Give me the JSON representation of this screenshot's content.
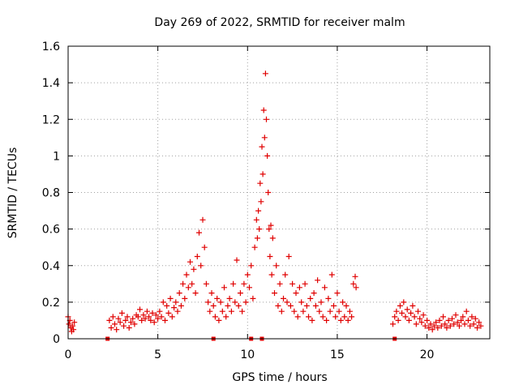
{
  "chart_data": {
    "type": "scatter",
    "title": "Day 269 of 2022, SRMTID for receiver malm",
    "xlabel": "GPS time / hours",
    "ylabel": "SRMTID / TECUs",
    "xlim": [
      0,
      23.5
    ],
    "ylim": [
      0,
      1.6
    ],
    "xticks": [
      0,
      5,
      10,
      15,
      20
    ],
    "yticks": [
      0,
      0.2,
      0.4,
      0.6,
      0.8,
      1,
      1.2,
      1.4,
      1.6
    ],
    "ytick_labels": [
      "0",
      "0.2",
      "0.4",
      "0.6",
      "0.8",
      "1",
      "1.2",
      "1.4",
      "1.6"
    ],
    "grid": true,
    "marker": "plus",
    "color": "#e00000",
    "baseline_flags_x": [
      2.2,
      8.1,
      10.2,
      10.8,
      18.2
    ],
    "series": [
      {
        "name": "SRMTID",
        "x": [
          0.0,
          0.05,
          0.1,
          0.15,
          0.2,
          0.25,
          0.3,
          0.35,
          2.3,
          2.4,
          2.5,
          2.6,
          2.7,
          2.8,
          2.9,
          3.0,
          3.1,
          3.2,
          3.3,
          3.4,
          3.5,
          3.6,
          3.7,
          3.8,
          3.9,
          4.0,
          4.1,
          4.2,
          4.3,
          4.4,
          4.5,
          4.6,
          4.7,
          4.8,
          4.9,
          5.0,
          5.1,
          5.2,
          5.3,
          5.4,
          5.5,
          5.6,
          5.7,
          5.8,
          5.9,
          6.0,
          6.1,
          6.2,
          6.3,
          6.4,
          6.5,
          6.6,
          6.7,
          6.8,
          6.9,
          7.0,
          7.1,
          7.2,
          7.3,
          7.4,
          7.5,
          7.6,
          7.7,
          7.8,
          7.9,
          8.0,
          8.1,
          8.2,
          8.3,
          8.4,
          8.5,
          8.6,
          8.7,
          8.8,
          8.9,
          9.0,
          9.1,
          9.2,
          9.3,
          9.4,
          9.5,
          9.6,
          9.7,
          9.8,
          9.9,
          10.0,
          10.1,
          10.2,
          10.3,
          10.4,
          10.5,
          10.55,
          10.6,
          10.65,
          10.7,
          10.75,
          10.8,
          10.85,
          10.9,
          10.95,
          11.0,
          11.05,
          11.1,
          11.15,
          11.2,
          11.25,
          11.3,
          11.35,
          11.4,
          11.5,
          11.6,
          11.7,
          11.8,
          11.9,
          12.0,
          12.1,
          12.2,
          12.3,
          12.4,
          12.5,
          12.6,
          12.7,
          12.8,
          12.9,
          13.0,
          13.1,
          13.2,
          13.3,
          13.4,
          13.5,
          13.6,
          13.7,
          13.8,
          13.9,
          14.0,
          14.1,
          14.2,
          14.3,
          14.4,
          14.5,
          14.6,
          14.7,
          14.8,
          14.9,
          15.0,
          15.1,
          15.2,
          15.3,
          15.4,
          15.5,
          15.6,
          15.7,
          15.8,
          15.9,
          16.0,
          16.05,
          18.1,
          18.2,
          18.3,
          18.4,
          18.5,
          18.6,
          18.7,
          18.8,
          18.9,
          19.0,
          19.1,
          19.2,
          19.3,
          19.4,
          19.5,
          19.6,
          19.7,
          19.8,
          19.9,
          20.0,
          20.1,
          20.2,
          20.3,
          20.4,
          20.5,
          20.6,
          20.7,
          20.8,
          20.9,
          21.0,
          21.1,
          21.2,
          21.3,
          21.4,
          21.5,
          21.6,
          21.7,
          21.8,
          21.9,
          22.0,
          22.1,
          22.2,
          22.3,
          22.4,
          22.5,
          22.6,
          22.7,
          22.8,
          22.9,
          23.0
        ],
        "y": [
          0.12,
          0.08,
          0.1,
          0.06,
          0.04,
          0.07,
          0.05,
          0.09,
          0.1,
          0.06,
          0.12,
          0.08,
          0.05,
          0.11,
          0.09,
          0.14,
          0.07,
          0.1,
          0.12,
          0.06,
          0.09,
          0.11,
          0.08,
          0.13,
          0.12,
          0.16,
          0.1,
          0.13,
          0.11,
          0.15,
          0.12,
          0.1,
          0.14,
          0.09,
          0.13,
          0.11,
          0.15,
          0.12,
          0.2,
          0.1,
          0.18,
          0.14,
          0.22,
          0.12,
          0.17,
          0.2,
          0.15,
          0.25,
          0.18,
          0.3,
          0.22,
          0.35,
          0.28,
          0.42,
          0.3,
          0.38,
          0.25,
          0.45,
          0.58,
          0.4,
          0.65,
          0.5,
          0.3,
          0.2,
          0.15,
          0.25,
          0.18,
          0.12,
          0.22,
          0.1,
          0.2,
          0.15,
          0.28,
          0.12,
          0.18,
          0.22,
          0.15,
          0.3,
          0.2,
          0.43,
          0.18,
          0.25,
          0.15,
          0.3,
          0.2,
          0.35,
          0.28,
          0.4,
          0.22,
          0.5,
          0.65,
          0.55,
          0.7,
          0.6,
          0.85,
          0.75,
          1.05,
          0.9,
          1.25,
          1.1,
          1.45,
          1.2,
          1.0,
          0.8,
          0.6,
          0.45,
          0.62,
          0.35,
          0.55,
          0.25,
          0.4,
          0.18,
          0.3,
          0.15,
          0.22,
          0.35,
          0.2,
          0.45,
          0.18,
          0.3,
          0.15,
          0.25,
          0.12,
          0.28,
          0.2,
          0.15,
          0.3,
          0.18,
          0.12,
          0.22,
          0.1,
          0.25,
          0.18,
          0.32,
          0.15,
          0.2,
          0.12,
          0.28,
          0.1,
          0.22,
          0.15,
          0.35,
          0.18,
          0.12,
          0.25,
          0.15,
          0.1,
          0.2,
          0.12,
          0.18,
          0.1,
          0.15,
          0.12,
          0.3,
          0.34,
          0.28,
          0.08,
          0.12,
          0.15,
          0.1,
          0.18,
          0.14,
          0.2,
          0.12,
          0.16,
          0.1,
          0.14,
          0.18,
          0.12,
          0.08,
          0.15,
          0.11,
          0.09,
          0.13,
          0.07,
          0.1,
          0.06,
          0.08,
          0.05,
          0.07,
          0.09,
          0.06,
          0.1,
          0.07,
          0.12,
          0.08,
          0.06,
          0.1,
          0.07,
          0.11,
          0.08,
          0.13,
          0.09,
          0.07,
          0.1,
          0.12,
          0.08,
          0.15,
          0.1,
          0.07,
          0.12,
          0.08,
          0.11,
          0.06,
          0.09,
          0.07
        ]
      }
    ]
  }
}
